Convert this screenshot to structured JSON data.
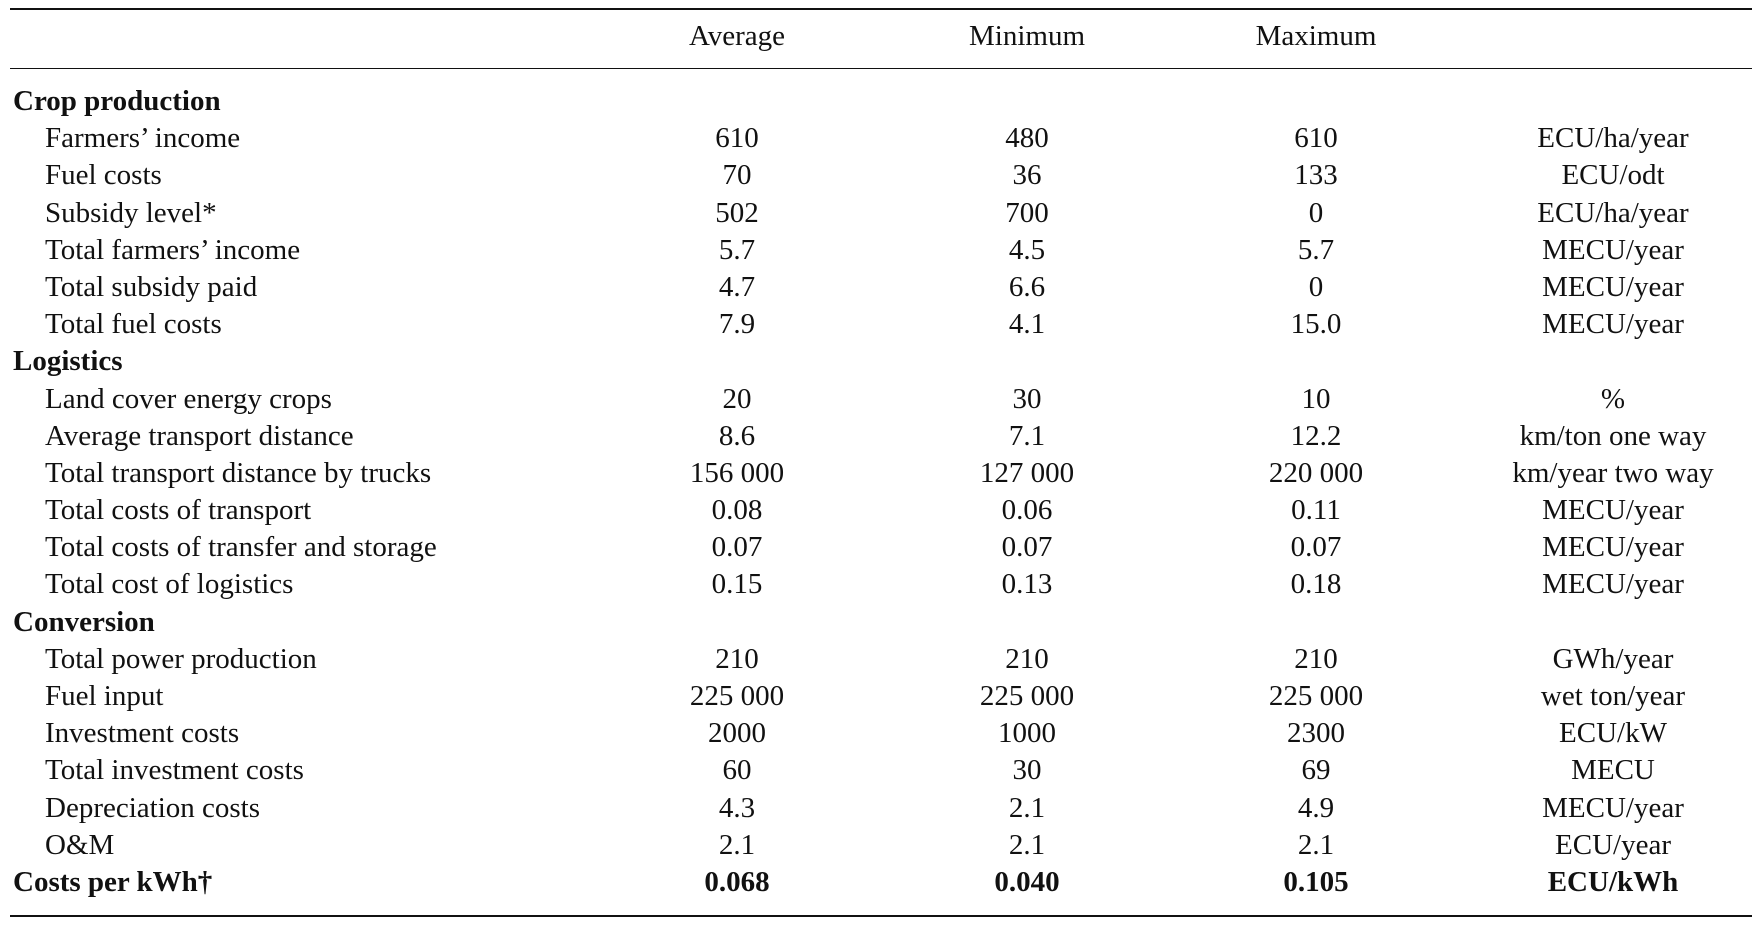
{
  "table": {
    "columns": [
      "Average",
      "Minimum",
      "Maximum"
    ],
    "rows": [
      {
        "type": "section",
        "label": "Crop production"
      },
      {
        "label": "Farmers’ income",
        "average": "610",
        "minimum": "480",
        "maximum": "610",
        "unit": "ECU/ha/year"
      },
      {
        "label": "Fuel costs",
        "average": "70",
        "minimum": "36",
        "maximum": "133",
        "unit": "ECU/odt"
      },
      {
        "label": "Subsidy level*",
        "average": "502",
        "minimum": "700",
        "maximum": "0",
        "unit": "ECU/ha/year"
      },
      {
        "label": "Total farmers’ income",
        "average": "5.7",
        "minimum": "4.5",
        "maximum": "5.7",
        "unit": "MECU/year"
      },
      {
        "label": "Total subsidy paid",
        "average": "4.7",
        "minimum": "6.6",
        "maximum": "0",
        "unit": "MECU/year"
      },
      {
        "label": "Total fuel costs",
        "average": "7.9",
        "minimum": "4.1",
        "maximum": "15.0",
        "unit": "MECU/year"
      },
      {
        "type": "section",
        "label": "Logistics"
      },
      {
        "label": "Land cover energy crops",
        "average": "20",
        "minimum": "30",
        "maximum": "10",
        "unit": "%"
      },
      {
        "label": "Average transport distance",
        "average": "8.6",
        "minimum": "7.1",
        "maximum": "12.2",
        "unit": "km/ton one way"
      },
      {
        "label": "Total transport distance by trucks",
        "average": "156 000",
        "minimum": "127 000",
        "maximum": "220 000",
        "unit": "km/year two way"
      },
      {
        "label": "Total costs of transport",
        "average": "0.08",
        "minimum": "0.06",
        "maximum": "0.11",
        "unit": "MECU/year"
      },
      {
        "label": "Total costs of transfer and storage",
        "average": "0.07",
        "minimum": "0.07",
        "maximum": "0.07",
        "unit": "MECU/year"
      },
      {
        "label": "Total cost of logistics",
        "average": "0.15",
        "minimum": "0.13",
        "maximum": "0.18",
        "unit": "MECU/year"
      },
      {
        "type": "section",
        "label": "Conversion"
      },
      {
        "label": "Total power production",
        "average": "210",
        "minimum": "210",
        "maximum": "210",
        "unit": "GWh/year"
      },
      {
        "label": "Fuel input",
        "average": "225 000",
        "minimum": "225 000",
        "maximum": "225 000",
        "unit": "wet ton/year"
      },
      {
        "label": "Investment costs",
        "average": "2000",
        "minimum": "1000",
        "maximum": "2300",
        "unit": "ECU/kW"
      },
      {
        "label": "Total investment costs",
        "average": "60",
        "minimum": "30",
        "maximum": "69",
        "unit": "MECU"
      },
      {
        "label": "Depreciation costs",
        "average": "4.3",
        "minimum": "2.1",
        "maximum": "4.9",
        "unit": "MECU/year"
      },
      {
        "label": "O&M",
        "average": "2.1",
        "minimum": "2.1",
        "maximum": "2.1",
        "unit": "ECU/year"
      },
      {
        "type": "total",
        "label": "Costs per kWh†",
        "average": "0.068",
        "minimum": "0.040",
        "maximum": "0.105",
        "unit": "ECU/kWh"
      }
    ]
  }
}
